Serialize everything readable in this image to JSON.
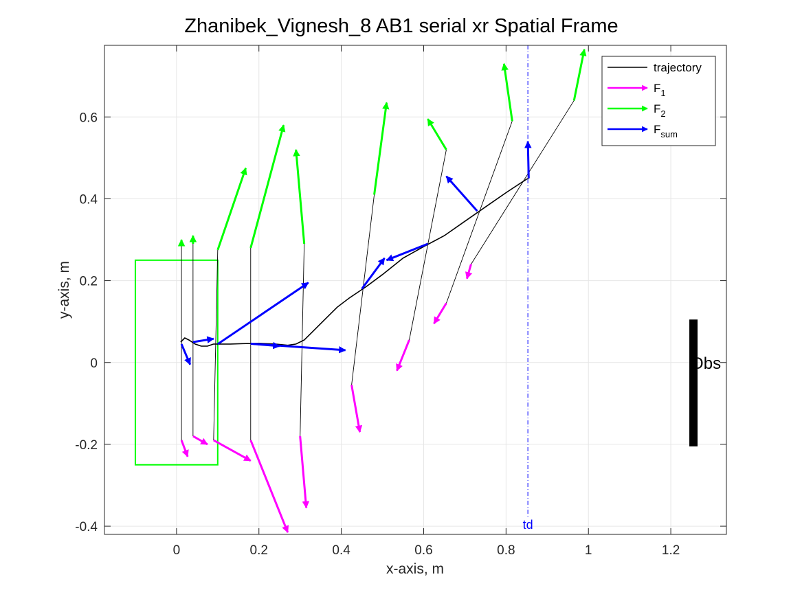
{
  "chart_data": {
    "type": "line",
    "title": "Zhanibek_Vignesh_8    AB1    serial    xr  Spatial Frame",
    "xlabel": "x-axis, m",
    "ylabel": "y-axis, m",
    "xlim": [
      -0.175,
      1.335
    ],
    "ylim": [
      -0.42,
      0.775
    ],
    "xticks": [
      0,
      0.2,
      0.4,
      0.6,
      0.8,
      1,
      1.2
    ],
    "yticks": [
      -0.4,
      -0.2,
      0,
      0.2,
      0.4,
      0.6
    ],
    "xtick_labels": [
      "0",
      "0.2",
      "0.4",
      "0.6",
      "0.8",
      "1",
      "1.2"
    ],
    "ytick_labels": [
      "-0.4",
      "-0.2",
      "0",
      "0.2",
      "0.4",
      "0.6"
    ],
    "grid": true,
    "legend": {
      "location": "top-right",
      "entries": [
        {
          "key": "trajectory",
          "label": "trajectory",
          "sub": "",
          "color": "#000000"
        },
        {
          "key": "F1",
          "label": "F",
          "sub": "1",
          "color": "#ff00ff"
        },
        {
          "key": "F2",
          "label": "F",
          "sub": "2",
          "color": "#00ff00"
        },
        {
          "key": "Fsum",
          "label": "F",
          "sub": "sum",
          "color": "#0000ff"
        }
      ]
    },
    "colors": {
      "trajectory": "#000000",
      "F1": "#ff00ff",
      "F2": "#00ff00",
      "Fsum": "#0000ff",
      "start_box": "#00ff00",
      "td_line": "#0000ff",
      "obstacle": "#000000"
    },
    "trajectory": [
      [
        0.01,
        0.05
      ],
      [
        0.02,
        0.06
      ],
      [
        0.03,
        0.055
      ],
      [
        0.045,
        0.045
      ],
      [
        0.06,
        0.04
      ],
      [
        0.075,
        0.04
      ],
      [
        0.09,
        0.045
      ],
      [
        0.1,
        0.045
      ],
      [
        0.13,
        0.045
      ],
      [
        0.16,
        0.046
      ],
      [
        0.2,
        0.047
      ],
      [
        0.24,
        0.045
      ],
      [
        0.27,
        0.042
      ],
      [
        0.29,
        0.045
      ],
      [
        0.31,
        0.055
      ],
      [
        0.33,
        0.075
      ],
      [
        0.36,
        0.105
      ],
      [
        0.39,
        0.135
      ],
      [
        0.42,
        0.158
      ],
      [
        0.46,
        0.185
      ],
      [
        0.5,
        0.215
      ],
      [
        0.55,
        0.255
      ],
      [
        0.6,
        0.283
      ],
      [
        0.65,
        0.31
      ],
      [
        0.7,
        0.345
      ],
      [
        0.75,
        0.38
      ],
      [
        0.8,
        0.415
      ],
      [
        0.85,
        0.448
      ],
      [
        0.855,
        0.45
      ]
    ],
    "force_frames": [
      {
        "pos": [
          0.012,
          0.045
        ],
        "F1": {
          "from": [
            0.012,
            -0.19
          ],
          "to": [
            0.027,
            -0.23
          ]
        },
        "F2": {
          "from": [
            0.012,
            0.29
          ],
          "to": [
            0.012,
            0.3
          ]
        },
        "Fsum": {
          "from": [
            0.012,
            0.045
          ],
          "to": [
            0.033,
            -0.005
          ]
        }
      },
      {
        "pos": [
          0.04,
          0.05
        ],
        "F1": {
          "from": [
            0.04,
            -0.18
          ],
          "to": [
            0.075,
            -0.2
          ]
        },
        "F2": {
          "from": [
            0.04,
            0.29
          ],
          "to": [
            0.04,
            0.31
          ]
        },
        "Fsum": {
          "from": [
            0.04,
            0.05
          ],
          "to": [
            0.09,
            0.058
          ]
        }
      },
      {
        "pos": [
          0.1,
          0.045
        ],
        "F1": {
          "from": [
            0.09,
            -0.19
          ],
          "to": [
            0.18,
            -0.24
          ]
        },
        "F2": {
          "from": [
            0.1,
            0.275
          ],
          "to": [
            0.168,
            0.475
          ]
        },
        "Fsum": {
          "from": [
            0.1,
            0.045
          ],
          "to": [
            0.32,
            0.195
          ]
        }
      },
      {
        "pos": [
          0.18,
          0.046
        ],
        "F1": {
          "from": [
            0.18,
            -0.19
          ],
          "to": [
            0.27,
            -0.415
          ]
        },
        "F2": {
          "from": [
            0.18,
            0.28
          ],
          "to": [
            0.26,
            0.58
          ]
        },
        "Fsum": {
          "from": [
            0.18,
            0.046
          ],
          "to": [
            0.25,
            0.04
          ]
        }
      },
      {
        "pos": [
          0.3,
          0.045
        ],
        "F1": {
          "from": [
            0.3,
            -0.18
          ],
          "to": [
            0.315,
            -0.355
          ]
        },
        "F2": {
          "from": [
            0.31,
            0.29
          ],
          "to": [
            0.29,
            0.52
          ]
        },
        "Fsum": {
          "from": [
            0.18,
            0.046
          ],
          "to": [
            0.41,
            0.03
          ]
        }
      },
      {
        "pos": [
          0.45,
          0.18
        ],
        "F1": {
          "from": [
            0.425,
            -0.055
          ],
          "to": [
            0.445,
            -0.17
          ]
        },
        "F2": {
          "from": [
            0.48,
            0.41
          ],
          "to": [
            0.51,
            0.635
          ]
        },
        "Fsum": {
          "from": [
            0.45,
            0.18
          ],
          "to": [
            0.505,
            0.255
          ]
        }
      },
      {
        "pos": [
          0.61,
          0.29
        ],
        "F1": {
          "from": [
            0.565,
            0.055
          ],
          "to": [
            0.535,
            -0.02
          ]
        },
        "F2": {
          "from": [
            0.655,
            0.52
          ],
          "to": [
            0.61,
            0.595
          ]
        },
        "Fsum": {
          "from": [
            0.61,
            0.29
          ],
          "to": [
            0.51,
            0.25
          ]
        }
      },
      {
        "pos": [
          0.73,
          0.37
        ],
        "F1": {
          "from": [
            0.655,
            0.145
          ],
          "to": [
            0.625,
            0.095
          ]
        },
        "F2": {
          "from": [
            0.815,
            0.59
          ],
          "to": [
            0.795,
            0.73
          ]
        },
        "Fsum": {
          "from": [
            0.73,
            0.37
          ],
          "to": [
            0.655,
            0.455
          ]
        }
      },
      {
        "pos": [
          0.855,
          0.45
        ],
        "F1": {
          "from": [
            0.715,
            0.24
          ],
          "to": [
            0.705,
            0.205
          ]
        },
        "F2": {
          "from": [
            0.965,
            0.64
          ],
          "to": [
            0.99,
            0.765
          ]
        },
        "Fsum": {
          "from": [
            0.855,
            0.45
          ],
          "to": [
            0.853,
            0.54
          ]
        }
      }
    ],
    "start_box": {
      "x": [
        -0.1,
        0.1
      ],
      "y": [
        -0.25,
        0.25
      ]
    },
    "td": {
      "x": 0.853,
      "label": "td"
    },
    "obstacle": {
      "x": 1.255,
      "y": [
        -0.205,
        0.105
      ],
      "label": "Obs"
    }
  }
}
